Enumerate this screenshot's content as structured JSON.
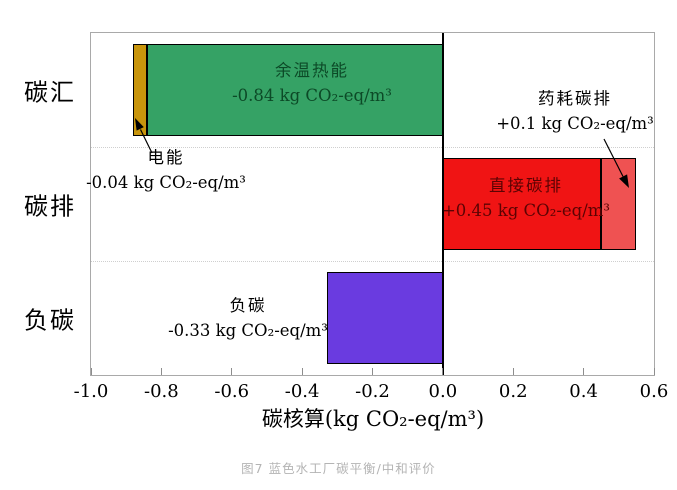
{
  "figure": {
    "caption": "图7  蓝色水工厂碳平衡/中和评价"
  },
  "chart_data": {
    "type": "bar",
    "orientation": "horizontal",
    "xlabel": "碳核算(kg CO₂-eq/m³)",
    "xlim": [
      -1.0,
      0.6
    ],
    "xticks": [
      -1.0,
      -0.8,
      -0.6,
      -0.4,
      -0.2,
      0.0,
      0.2,
      0.4,
      0.6
    ],
    "xtick_labels": [
      "-1.0",
      "-0.8",
      "-0.6",
      "-0.4",
      "-0.2",
      "0.0",
      "0.2",
      "0.4",
      "0.6"
    ],
    "categories": [
      "碳汇",
      "碳排",
      "负碳"
    ],
    "grid": "horizontal-dotted-between-rows",
    "zero_line": true,
    "segments": [
      {
        "category": "碳汇",
        "name": "电能",
        "value": -0.04,
        "from": -0.88,
        "to": -0.84,
        "color": "#c8950c",
        "label": "电能",
        "value_label": "-0.04 kg CO₂-eq/m³",
        "label_position": "outside-below-with-arrow"
      },
      {
        "category": "碳汇",
        "name": "余温热能",
        "value": -0.84,
        "from": -0.84,
        "to": 0.0,
        "color": "#35a265",
        "label": "余温热能",
        "value_label": "-0.84 kg CO₂-eq/m³",
        "label_position": "inside"
      },
      {
        "category": "碳排",
        "name": "直接碳排",
        "value": 0.45,
        "from": 0.0,
        "to": 0.45,
        "color": "#f01414",
        "label": "直接碳排",
        "value_label": "+0.45 kg CO₂-eq/m³",
        "label_position": "inside"
      },
      {
        "category": "碳排",
        "name": "药耗碳排",
        "value": 0.1,
        "from": 0.45,
        "to": 0.55,
        "color": "#ef5252",
        "label": "药耗碳排",
        "value_label": "+0.1 kg CO₂-eq/m³",
        "label_position": "outside-above-with-arrow"
      },
      {
        "category": "负碳",
        "name": "负碳",
        "value": -0.33,
        "from": -0.33,
        "to": 0.0,
        "color": "#6a3be0",
        "label": "负碳",
        "value_label": "-0.33 kg CO₂-eq/m³",
        "label_position": "outside-left"
      }
    ],
    "colors": {
      "electricity": "#c8950c",
      "waste_heat": "#35a265",
      "direct_emission": "#f01414",
      "chemical_emission": "#ef5252",
      "negative_carbon": "#6a3be0",
      "plot_border": "#a9a9a9",
      "zero_line": "#000000"
    }
  }
}
